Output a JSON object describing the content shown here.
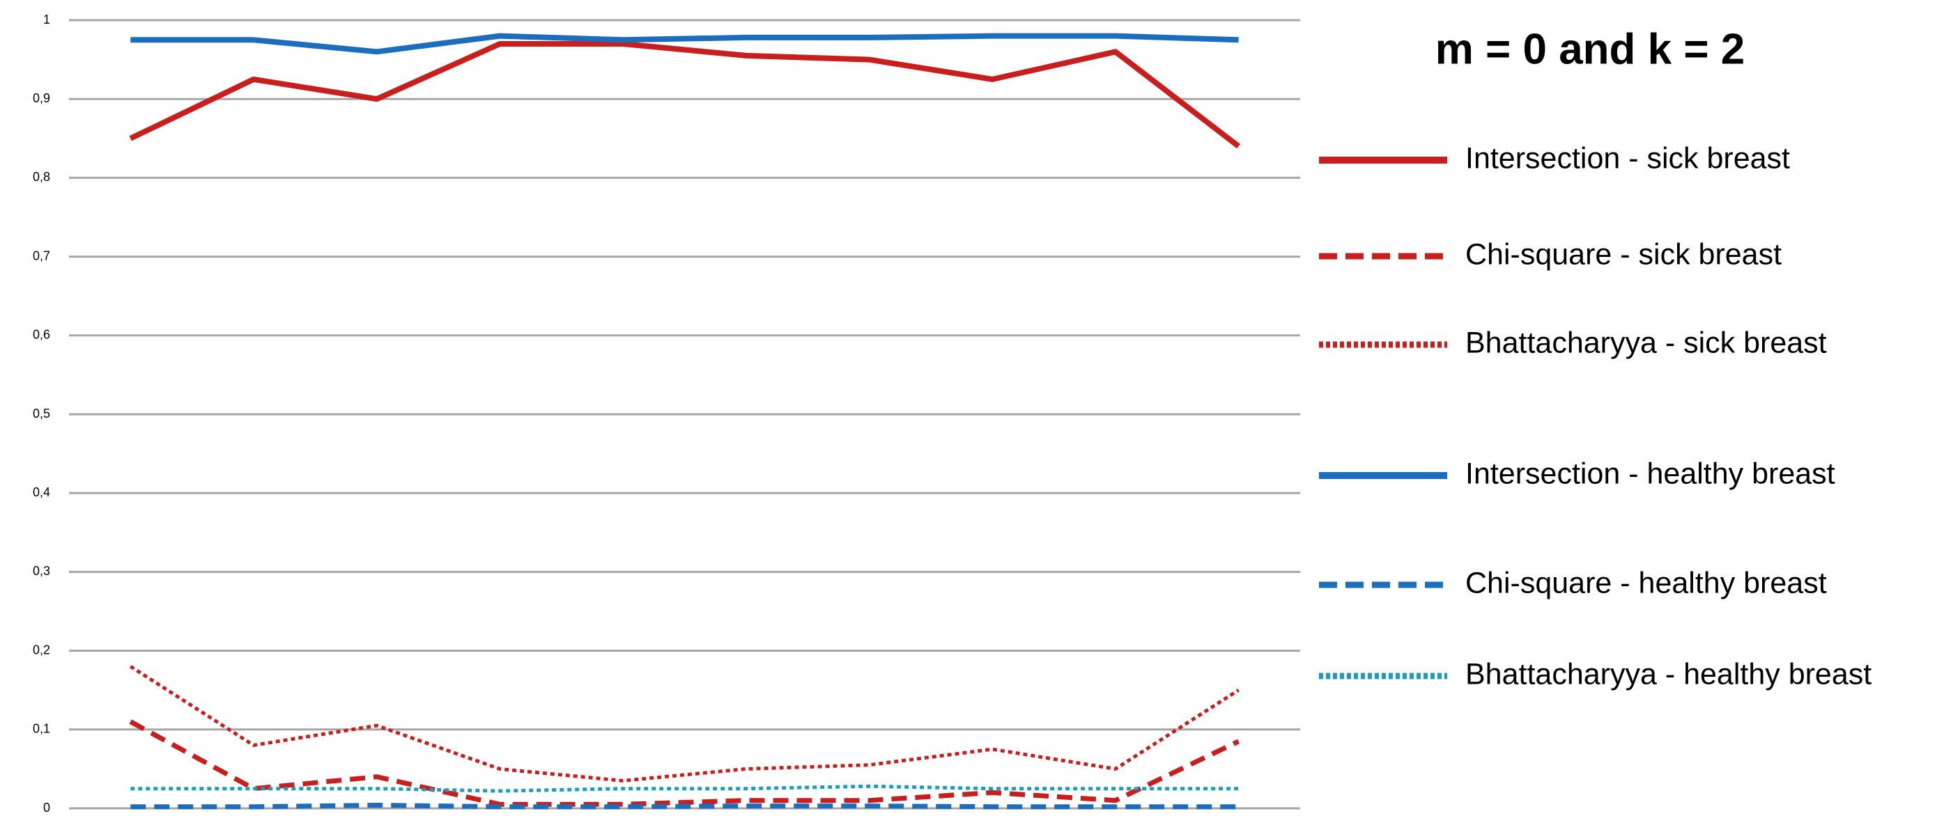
{
  "chart_data": {
    "type": "line",
    "title": "m = 0 and k = 2",
    "categories": [
      null,
      null,
      null,
      null,
      null,
      null,
      null,
      null,
      null,
      null
    ],
    "ylim": [
      0,
      1
    ],
    "yticks": [
      0,
      {
        "value": 0.1,
        "label": "0,1"
      },
      {
        "value": 0.2,
        "label": "0,2"
      },
      {
        "value": 0.3,
        "label": "0,3"
      },
      {
        "value": 0.4,
        "label": "0,4"
      },
      {
        "value": 0.5,
        "label": "0,5"
      },
      {
        "value": 0.6,
        "label": "0,6"
      },
      {
        "value": 0.7,
        "label": "0,7"
      },
      {
        "value": 0.8,
        "label": "0,8"
      },
      {
        "value": 0.9,
        "label": "0,9"
      },
      1
    ],
    "grid": true,
    "series": [
      {
        "name": "Intersection - sick breast",
        "color": "#c81e1e",
        "dash": "solid",
        "values": [
          0.85,
          0.925,
          0.9,
          0.97,
          0.97,
          0.955,
          0.95,
          0.925,
          0.96,
          0.84
        ]
      },
      {
        "name": "Chi-square  - sick breast",
        "color": "#c81e1e",
        "dash": "dashed",
        "values": [
          0.11,
          0.025,
          0.04,
          0.005,
          0.005,
          0.01,
          0.01,
          0.02,
          0.01,
          0.085
        ]
      },
      {
        "name": "Bhattacharyya - sick breast",
        "color": "#c81e1e",
        "dash": "dotted",
        "values": [
          0.18,
          0.08,
          0.105,
          0.05,
          0.035,
          0.05,
          0.055,
          0.075,
          0.05,
          0.15
        ]
      },
      {
        "name": "Intersection - healthy breast",
        "color": "#1c6dbd",
        "dash": "solid",
        "values": [
          0.975,
          0.975,
          0.96,
          0.98,
          0.975,
          0.978,
          0.978,
          0.98,
          0.98,
          0.975
        ]
      },
      {
        "name": "Chi-square - healthy breast",
        "color": "#1c6dbd",
        "dash": "dashed",
        "values": [
          0.002,
          0.002,
          0.004,
          0.002,
          0.002,
          0.003,
          0.003,
          0.002,
          0.002,
          0.002
        ]
      },
      {
        "name": "Bhattacharyya - healthy breast",
        "color": "#1c9dbd",
        "dash": "dotted",
        "values": [
          0.025,
          0.025,
          0.025,
          0.022,
          0.025,
          0.025,
          0.028,
          0.025,
          0.025,
          0.025
        ]
      }
    ]
  }
}
